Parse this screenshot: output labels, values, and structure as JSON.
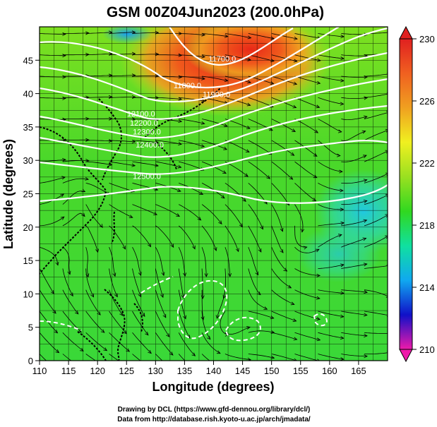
{
  "title": "GSM 00Z04Jun2023 (200.0hPa)",
  "xlabel": "Longitude (degrees)",
  "ylabel": "Latitude  (degrees)",
  "credits": [
    "Drawing by DCL (https://www.gfd-dennou.org/library/dcl/)",
    "Data from http://database.rish.kyoto-u.ac.jp/arch/jmadata/"
  ],
  "x_ticks": [
    "110",
    "115",
    "120",
    "125",
    "130",
    "135",
    "140",
    "145",
    "150",
    "155",
    "160",
    "165"
  ],
  "y_ticks": [
    "0",
    "5",
    "10",
    "15",
    "20",
    "25",
    "30",
    "35",
    "40",
    "45"
  ],
  "xlim": [
    110,
    170
  ],
  "ylim": [
    0,
    50
  ],
  "colorbar": {
    "ticks": [
      "210",
      "214",
      "218",
      "222",
      "226",
      "230"
    ],
    "range": [
      210,
      230
    ],
    "colors": [
      "#ee1aaa",
      "#1010c8",
      "#10a8f0",
      "#10e0a0",
      "#30d820",
      "#9ae020",
      "#f0f020",
      "#f0a020",
      "#f06020",
      "#e02020"
    ]
  },
  "contour_labels": [
    {
      "text": "11700.0",
      "lon": 141.5,
      "lat": 44.8
    },
    {
      "text": "11800.0",
      "lon": 135.5,
      "lat": 40.8
    },
    {
      "text": "11900.0",
      "lon": 140.5,
      "lat": 39.5
    },
    {
      "text": "12100.0",
      "lon": 127.5,
      "lat": 36.6
    },
    {
      "text": "12200.0",
      "lon": 128.0,
      "lat": 35.2
    },
    {
      "text": "12300.0",
      "lon": 128.5,
      "lat": 33.9
    },
    {
      "text": "12400.0",
      "lon": 129.0,
      "lat": 31.9
    },
    {
      "text": "12500.0",
      "lon": 128.5,
      "lat": 27.2
    }
  ]
}
